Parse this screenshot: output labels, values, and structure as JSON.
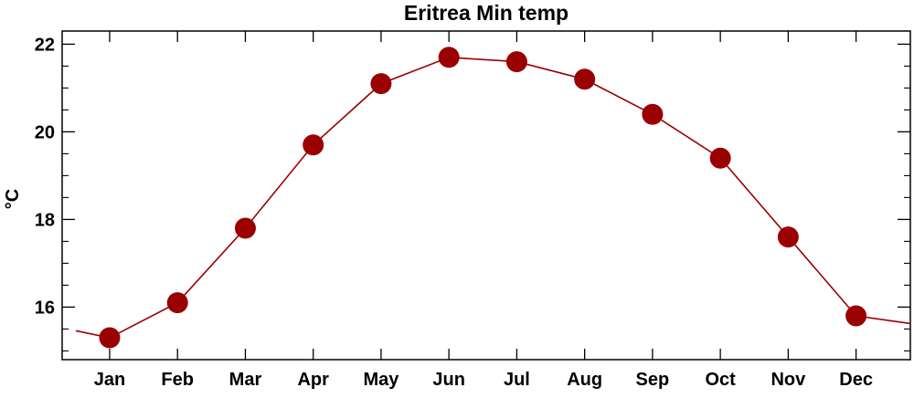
{
  "chart_data": {
    "type": "line",
    "title": "Eritrea Min temp",
    "xlabel": "",
    "ylabel": "°C",
    "categories": [
      "Jan",
      "Feb",
      "Mar",
      "Apr",
      "May",
      "Jun",
      "Jul",
      "Aug",
      "Sep",
      "Oct",
      "Nov",
      "Dec"
    ],
    "series": [
      {
        "values": [
          15.3,
          16.1,
          17.8,
          19.7,
          21.1,
          21.7,
          21.6,
          21.2,
          20.4,
          19.4,
          17.6,
          15.8
        ]
      }
    ],
    "ylim": [
      14.8,
      22.3
    ],
    "y_ticks": [
      16,
      18,
      20,
      22
    ],
    "y_tick_labels": [
      "16",
      "18",
      "20",
      "22"
    ],
    "grid": false,
    "line_color": "#9b0000",
    "marker_color": "#9b0000"
  }
}
